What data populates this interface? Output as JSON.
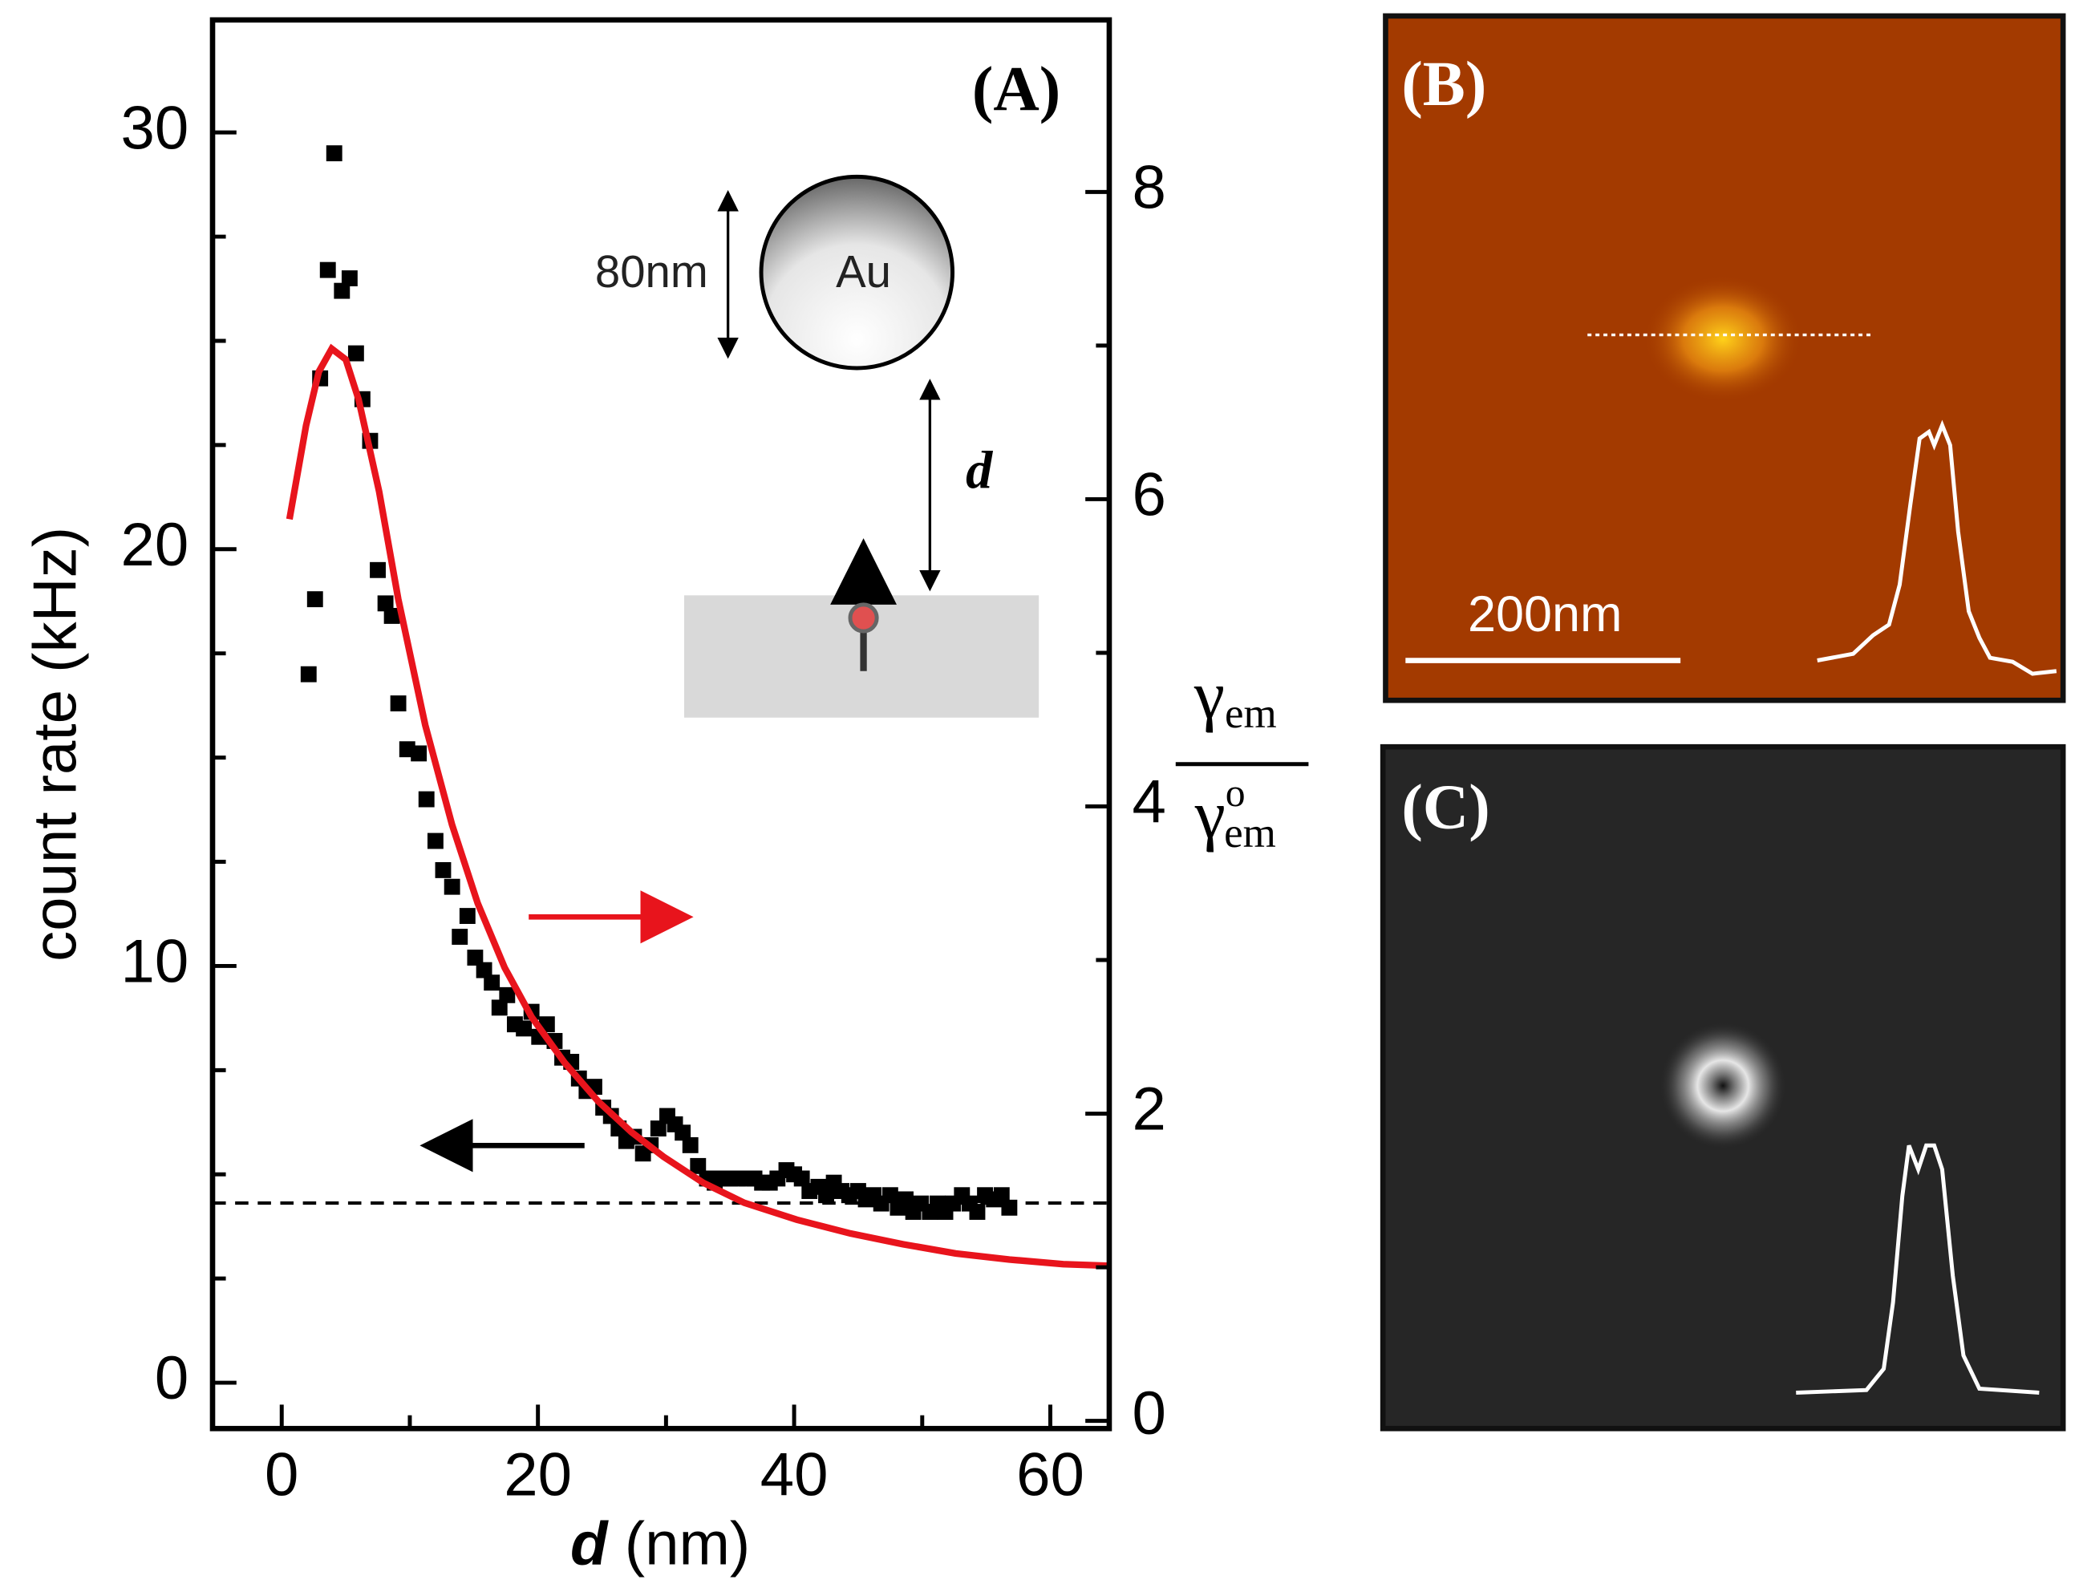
{
  "chart_data": {
    "type": "scatter",
    "annotations": {
      "panel": "(A)",
      "size": "80nm",
      "particle": "Au",
      "distance": "d"
    },
    "xlabel": {
      "symbol": "d",
      "unit": "(nm)"
    },
    "ylabel": "count rate (kHz)",
    "y2label": {
      "top": "γ",
      "top_sub": "em",
      "bottom": "γ",
      "bottom_sup": "o",
      "bottom_sub": "em"
    },
    "xlim": [
      -5.4,
      64.6
    ],
    "xticks": [
      0,
      20,
      40,
      60
    ],
    "xticks_minor": [
      10,
      30,
      50
    ],
    "ylim": [
      -1.1,
      32.7
    ],
    "yticks": [
      0,
      10,
      20,
      30
    ],
    "yticks_minor": [
      2.5,
      5,
      7.5,
      12.5,
      15,
      17.5,
      22.5,
      25,
      27.5
    ],
    "y2lim": [
      -0.05,
      9.12
    ],
    "y2ticks": [
      0,
      2,
      4,
      6,
      8
    ],
    "y2ticks_minor": [
      1,
      3,
      5,
      7
    ],
    "hlines": [
      {
        "value": 4.31,
        "color": "#000000",
        "style": "dashed"
      }
    ],
    "series": [
      {
        "type": "scatter",
        "color": "#000000",
        "x": [
          2.1,
          2.6,
          3.0,
          3.6,
          4.1,
          4.7,
          5.3,
          5.8,
          6.3,
          6.9,
          7.5,
          8.1,
          8.6,
          9.1,
          9.8,
          10.7,
          11.3,
          12.0,
          12.6,
          13.3,
          13.9,
          14.5,
          15.1,
          15.8,
          16.4,
          17.0,
          17.6,
          18.2,
          18.9,
          19.5,
          20.1,
          20.7,
          21.3,
          21.9,
          22.6,
          23.2,
          23.8,
          24.4,
          25.1,
          25.7,
          26.3,
          26.9,
          27.5,
          28.2,
          28.8,
          29.4,
          30.1,
          30.7,
          31.3,
          31.9,
          32.5,
          33.2,
          33.8,
          34.4,
          35.0,
          35.6,
          36.3,
          36.9,
          37.5,
          38.1,
          38.7,
          39.4,
          40.0,
          40.6,
          41.2,
          41.9,
          42.5,
          43.1,
          43.7,
          44.3,
          45.0,
          45.6,
          46.2,
          46.8,
          47.5,
          48.1,
          48.7,
          49.3,
          49.9,
          50.6,
          51.2,
          51.8,
          52.4,
          53.1,
          53.7,
          54.3,
          54.9,
          55.6,
          56.2,
          56.8
        ],
        "values": [
          17.0,
          18.8,
          24.1,
          26.7,
          29.5,
          26.2,
          26.5,
          24.7,
          23.6,
          22.6,
          19.5,
          18.7,
          18.4,
          16.3,
          15.2,
          15.1,
          14.0,
          13.0,
          12.3,
          11.9,
          10.7,
          11.2,
          10.2,
          9.9,
          9.6,
          9.0,
          9.3,
          8.6,
          8.5,
          8.9,
          8.3,
          8.6,
          8.2,
          7.8,
          7.7,
          7.3,
          7.0,
          7.1,
          6.6,
          6.4,
          6.1,
          5.8,
          5.9,
          5.5,
          5.7,
          6.1,
          6.4,
          6.2,
          6.0,
          5.7,
          5.2,
          4.9,
          4.8,
          4.9,
          4.9,
          4.9,
          4.9,
          4.9,
          4.8,
          4.8,
          4.9,
          5.1,
          5.0,
          4.9,
          4.6,
          4.7,
          4.5,
          4.8,
          4.6,
          4.5,
          4.6,
          4.4,
          4.5,
          4.3,
          4.5,
          4.2,
          4.4,
          4.1,
          4.3,
          4.1,
          4.3,
          4.1,
          4.3,
          4.5,
          4.3,
          4.1,
          4.5,
          4.4,
          4.5,
          4.2
        ]
      },
      {
        "type": "line",
        "axis": "y2",
        "color": "#e8141c",
        "x": [
          0.6,
          1.9,
          2.9,
          3.9,
          5.0,
          6.0,
          7.6,
          9.1,
          11.2,
          13.3,
          15.3,
          17.4,
          19.5,
          22.1,
          24.7,
          27.3,
          29.8,
          32.9,
          36.1,
          40.2,
          44.4,
          48.5,
          52.6,
          56.8,
          61.0,
          64.6
        ],
        "values": [
          5.87,
          6.48,
          6.83,
          6.98,
          6.91,
          6.65,
          6.05,
          5.35,
          4.53,
          3.88,
          3.37,
          2.95,
          2.63,
          2.33,
          2.08,
          1.88,
          1.72,
          1.55,
          1.42,
          1.31,
          1.22,
          1.15,
          1.09,
          1.05,
          1.02,
          1.01
        ]
      }
    ]
  },
  "panels": [
    {
      "label": "(B)",
      "scale_bar": "200nm"
    },
    {
      "label": "(C)"
    }
  ]
}
